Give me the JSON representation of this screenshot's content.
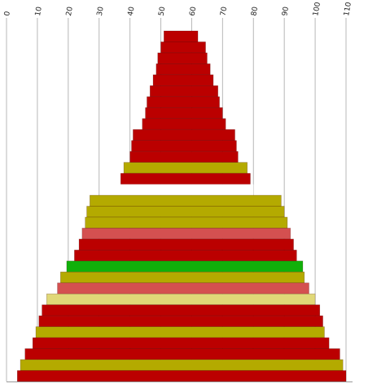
{
  "chart_data": {
    "type": "bar",
    "orientation": "horizontal",
    "style": "centered-stacked-pyramid",
    "x_axis": {
      "ticks": [
        0,
        10,
        20,
        30,
        40,
        50,
        60,
        70,
        80,
        90,
        100,
        110
      ],
      "range": [
        0,
        110
      ],
      "position": "top",
      "tick_label_rotation": "vertical"
    },
    "grid": true,
    "legend": "none",
    "colors": {
      "red": "#bb0000",
      "olive": "#b4aa00",
      "salmon": "#d45050",
      "green": "#11b00a",
      "pale": "#e0d878",
      "gap": "#ffffff"
    },
    "rows": [
      {
        "start": 51.0,
        "end": 62.0,
        "color": "red"
      },
      {
        "start": 50.0,
        "end": 64.5,
        "color": "red"
      },
      {
        "start": 49.0,
        "end": 65.0,
        "color": "red"
      },
      {
        "start": 48.5,
        "end": 66.0,
        "color": "red"
      },
      {
        "start": 47.5,
        "end": 67.0,
        "color": "red"
      },
      {
        "start": 46.5,
        "end": 68.5,
        "color": "red"
      },
      {
        "start": 45.5,
        "end": 69.0,
        "color": "red"
      },
      {
        "start": 45.0,
        "end": 70.0,
        "color": "red"
      },
      {
        "start": 44.0,
        "end": 71.0,
        "color": "red"
      },
      {
        "start": 41.0,
        "end": 74.0,
        "color": "red"
      },
      {
        "start": 40.5,
        "end": 74.5,
        "color": "red"
      },
      {
        "start": 40.0,
        "end": 75.0,
        "color": "red"
      },
      {
        "start": 38.0,
        "end": 78.0,
        "color": "olive"
      },
      {
        "start": 37.0,
        "end": 79.0,
        "color": "red"
      },
      {
        "start": 36.0,
        "end": 80.0,
        "color": "gap"
      },
      {
        "start": 27.0,
        "end": 89.0,
        "color": "olive"
      },
      {
        "start": 26.0,
        "end": 90.0,
        "color": "olive"
      },
      {
        "start": 25.5,
        "end": 91.0,
        "color": "olive"
      },
      {
        "start": 24.5,
        "end": 92.0,
        "color": "salmon"
      },
      {
        "start": 23.5,
        "end": 93.0,
        "color": "red"
      },
      {
        "start": 22.0,
        "end": 94.0,
        "color": "red"
      },
      {
        "start": 19.5,
        "end": 96.0,
        "color": "green"
      },
      {
        "start": 17.5,
        "end": 96.5,
        "color": "olive"
      },
      {
        "start": 16.5,
        "end": 98.0,
        "color": "salmon"
      },
      {
        "start": 13.0,
        "end": 100.0,
        "color": "pale"
      },
      {
        "start": 11.5,
        "end": 101.5,
        "color": "red"
      },
      {
        "start": 10.5,
        "end": 102.5,
        "color": "red"
      },
      {
        "start": 9.5,
        "end": 103.0,
        "color": "olive"
      },
      {
        "start": 8.5,
        "end": 104.5,
        "color": "red"
      },
      {
        "start": 6.0,
        "end": 108.0,
        "color": "red"
      },
      {
        "start": 4.5,
        "end": 109.0,
        "color": "olive"
      },
      {
        "start": 3.5,
        "end": 110.0,
        "color": "red"
      }
    ]
  }
}
